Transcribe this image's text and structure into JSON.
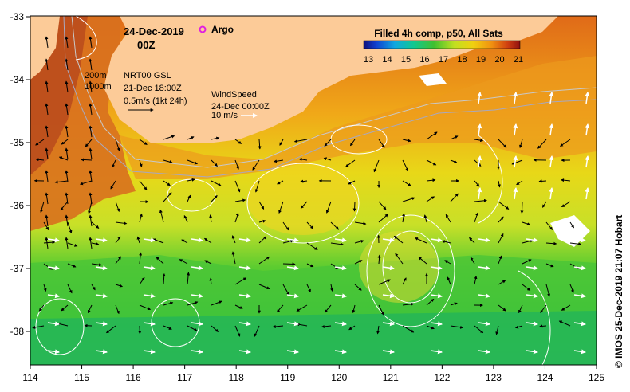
{
  "map": {
    "date": "24-Dec-2019",
    "time": "00Z",
    "argo_label": "Argo",
    "contours": [
      "200m",
      "1000m"
    ],
    "gsl_title": "NRT00 GSL",
    "gsl_date": "21-Dec 18:00Z",
    "current_scale": "0.5m/s (1kt 24h)",
    "wind_title": "WindSpeed",
    "wind_date": "24-Dec 00:00Z",
    "wind_scale": "10 m/s",
    "colorbar_title": "Filled 4h comp, p50, All Sats",
    "colorbar_ticks": [
      "13",
      "14",
      "15",
      "16",
      "17",
      "18",
      "19",
      "20",
      "21"
    ],
    "x_ticks": [
      "114",
      "115",
      "116",
      "117",
      "118",
      "119",
      "120",
      "121",
      "122",
      "123",
      "124",
      "125"
    ],
    "y_ticks": [
      "-33",
      "-34",
      "-35",
      "-36",
      "-37",
      "-38"
    ],
    "credit": "© IMOS 25-Dec-2019 21:07 Hobart",
    "colors": {
      "land": "#fccb98",
      "warm": "#e8901c",
      "hot": "#c0501e",
      "mid": "#f0cc10",
      "cool": "#c8e020",
      "cold": "#30c030",
      "coldest": "#18b070",
      "argo": "#e020e0"
    }
  }
}
